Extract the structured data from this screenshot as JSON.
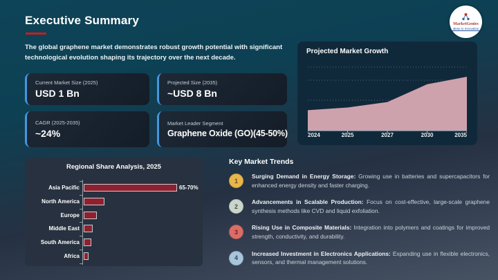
{
  "page": {
    "title": "Executive Summary",
    "intro": "The global graphene market demonstrates robust growth potential with significant technological evolution shaping its trajectory over the next decade."
  },
  "logo": {
    "name": "MarketGenies",
    "tagline": "Ideas to Innovation",
    "colors": {
      "name_red": "#b03a2e",
      "tagline_blue": "#1f4e9c"
    }
  },
  "stats": [
    {
      "label": "Current Market Size (2025)",
      "value": "USD 1 Bn"
    },
    {
      "label": "Projected Size (2035)",
      "value": "~USD 8 Bn"
    },
    {
      "label": "CAGR (2025-2035)",
      "value": "~24%"
    },
    {
      "label": "Market Leader Segment",
      "value": "Graphene Oxide (GO)(45-50%)"
    }
  ],
  "chart_data": [
    {
      "type": "area",
      "title": "Projected Market Growth",
      "x": [
        "2024",
        "2025",
        "2027",
        "2030",
        "2035"
      ],
      "values_pct_of_max_height": [
        38,
        43,
        53,
        86,
        100
      ],
      "ylabel": "",
      "yticks_shown": false,
      "grid": "dotted horizontal",
      "fill_color": "#cda2ad",
      "panel_color": "#10293a"
    },
    {
      "type": "bar",
      "orientation": "horizontal",
      "title": "Regional Share Analysis, 2025",
      "categories": [
        "Asia Pacific",
        "North America",
        "Europe",
        "Middle East",
        "South America",
        "Africa"
      ],
      "values": [
        67.5,
        14,
        8.5,
        5.5,
        4.5,
        2.5
      ],
      "data_labels": [
        "65-70%",
        "",
        "",
        "",
        "",
        ""
      ],
      "bar_color": "#8e2130",
      "panel_color": "#27313f"
    }
  ],
  "trends": {
    "title": "Key Market Trends",
    "items": [
      {
        "num": "1",
        "badge_color": "#e9b64b",
        "badge_border": "#caa03c",
        "num_color": "#6b4a12",
        "lead": "Surging Demand in Energy Storage:",
        "text": "Growing use in batteries and supercapacitors for enhanced energy density and faster charging."
      },
      {
        "num": "2",
        "badge_color": "#ccd5cc",
        "badge_border": "#b2bfb2",
        "num_color": "#46523f",
        "lead": "Advancements in Scalable Production:",
        "text": "Focus on cost-effective, large-scale graphene synthesis methods like CVD and liquid exfoliation."
      },
      {
        "num": "3",
        "badge_color": "#d96e68",
        "badge_border": "#c05a55",
        "num_color": "#7e1d1d",
        "lead": "Rising Use in Composite Materials:",
        "text": "Integration into polymers and coatings for improved strength, conductivity, and durability."
      },
      {
        "num": "4",
        "badge_color": "#a9c5da",
        "badge_border": "#8fadc4",
        "num_color": "#2c4a63",
        "lead": "Increased Investment in Electronics Applications:",
        "text": "Expanding use in flexible electronics, sensors, and thermal management solutions."
      }
    ]
  }
}
